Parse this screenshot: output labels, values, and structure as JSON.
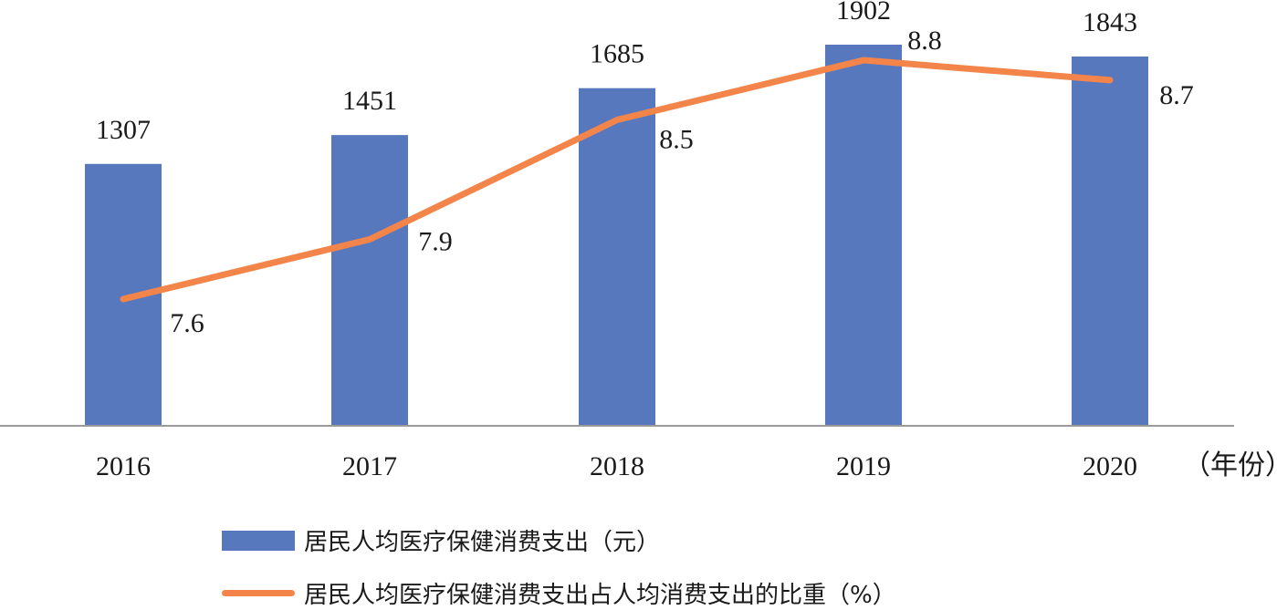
{
  "chart_data": {
    "type": "bar+line",
    "categories": [
      "2016",
      "2017",
      "2018",
      "2019",
      "2020"
    ],
    "x_unit_label": "（年份）",
    "series": [
      {
        "name": "居民人均医疗保健消费支出（元）",
        "type": "bar",
        "color": "#5878bd",
        "values": [
          1307,
          1451,
          1685,
          1902,
          1843
        ],
        "labels": [
          "1307",
          "1451",
          "1685",
          "1902",
          "1843"
        ]
      },
      {
        "name": "居民人均医疗保健消费支出占人均消费支出的比重（%）",
        "type": "line",
        "color": "#f4854a",
        "values": [
          7.6,
          7.9,
          8.5,
          8.8,
          8.7
        ],
        "labels": [
          "7.6",
          "7.9",
          "8.5",
          "8.8",
          "8.7"
        ]
      }
    ],
    "legend_position": "bottom",
    "grid": false
  }
}
